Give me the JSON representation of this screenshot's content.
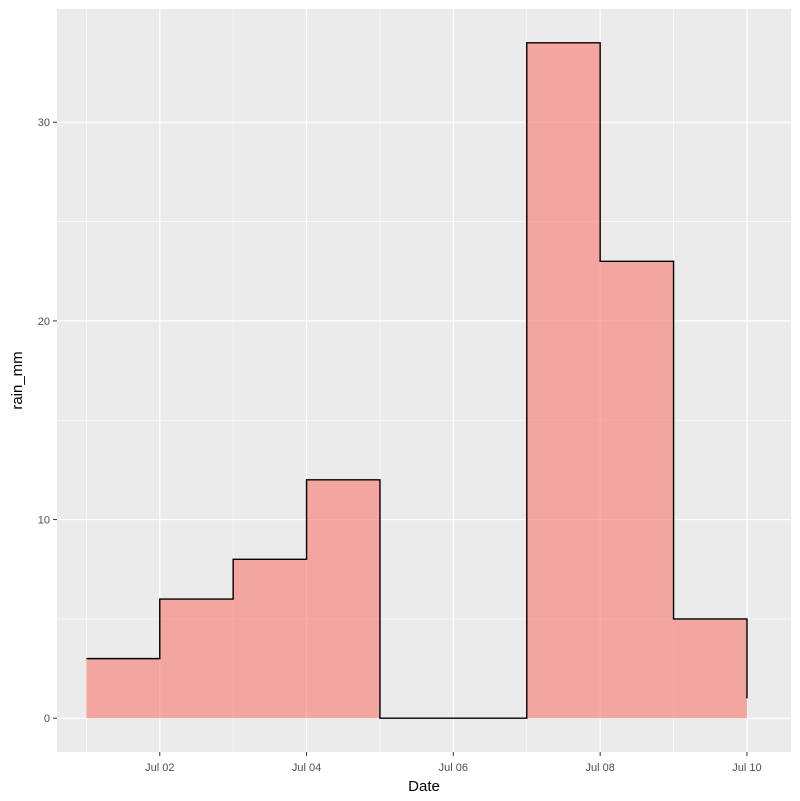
{
  "chart_data": {
    "type": "area",
    "step": true,
    "title": "",
    "xlabel": "Date",
    "ylabel": "rain_mm",
    "x": [
      "Jul 01",
      "Jul 02",
      "Jul 03",
      "Jul 04",
      "Jul 05",
      "Jul 06",
      "Jul 07",
      "Jul 08",
      "Jul 09",
      "Jul 10"
    ],
    "values": [
      3,
      6,
      8,
      12,
      0,
      0,
      34,
      23,
      5,
      1
    ],
    "xlim": [
      "Jun 30.6",
      "Jul 10.6"
    ],
    "ylim": [
      -1.7,
      35.7
    ],
    "x_ticks": [
      "Jul 02",
      "Jul 04",
      "Jul 06",
      "Jul 08",
      "Jul 10"
    ],
    "y_ticks": [
      0,
      10,
      20,
      30
    ],
    "grid": true,
    "legend": "none",
    "colors": {
      "panel_background": "#ebebeb",
      "grid": "#ffffff",
      "fill": "#f8766d",
      "line": "#000000"
    }
  }
}
